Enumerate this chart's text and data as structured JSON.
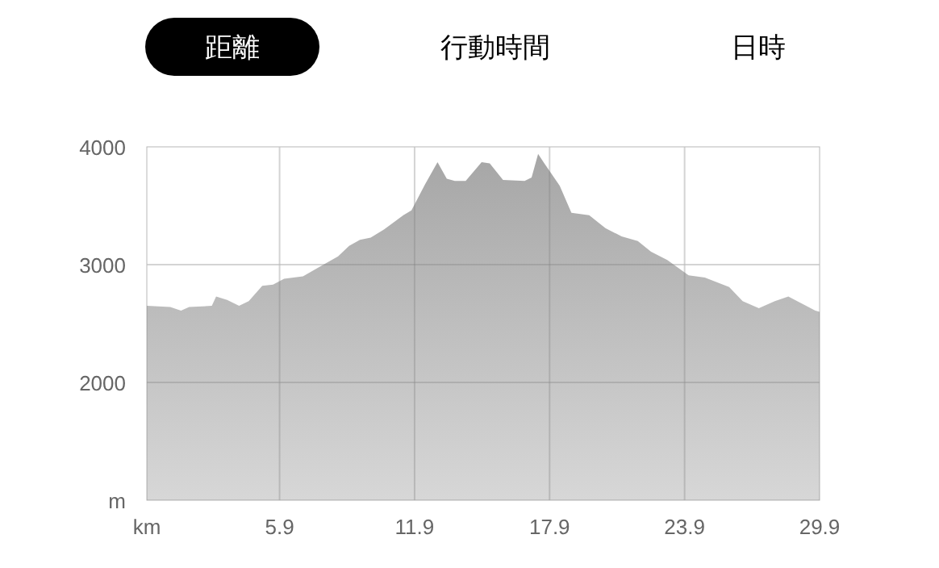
{
  "chart_data": {
    "type": "area",
    "annotations": [
      "距離",
      "行動時間",
      "日時"
    ],
    "x": [
      0,
      1.04,
      1.52,
      1.88,
      2.89,
      3.08,
      3.57,
      4.1,
      4.53,
      5.13,
      5.61,
      6.1,
      6.94,
      7.66,
      8.5,
      8.99,
      9.47,
      9.95,
      10.55,
      11.4,
      11.76,
      12.36,
      12.92,
      13.33,
      13.69,
      14.17,
      14.88,
      15.24,
      15.83,
      16.79,
      17.1,
      17.39,
      17.63,
      18.35,
      18.87,
      19.66,
      20.38,
      21.1,
      21.82,
      22.41,
      23.13,
      24.08,
      24.8,
      25.88,
      26.48,
      27.2,
      27.91,
      28.51,
      29.11,
      29.71,
      29.9
    ],
    "series": [
      {
        "color": "#a6a6a6",
        "values": [
          2650,
          2640,
          2610,
          2640,
          2650,
          2730,
          2700,
          2650,
          2690,
          2820,
          2830,
          2880,
          2900,
          2980,
          3070,
          3160,
          3210,
          3230,
          3300,
          3420,
          3460,
          3680,
          3870,
          3730,
          3710,
          3710,
          3870,
          3860,
          3720,
          3710,
          3740,
          3940,
          3870,
          3670,
          3440,
          3420,
          3310,
          3240,
          3200,
          3110,
          3040,
          2910,
          2890,
          2810,
          2690,
          2630,
          2690,
          2730,
          2670,
          2610,
          2600
        ]
      }
    ],
    "xlim": [
      0,
      29.9
    ],
    "xticks": [
      {
        "value": 0,
        "label": "km"
      },
      5.9,
      11.9,
      17.9,
      23.9,
      29.9
    ],
    "ylim": [
      1000,
      4000
    ],
    "yticks": [
      {
        "value": 1000,
        "label": "m"
      },
      2000,
      3000,
      4000
    ],
    "grid": true
  }
}
